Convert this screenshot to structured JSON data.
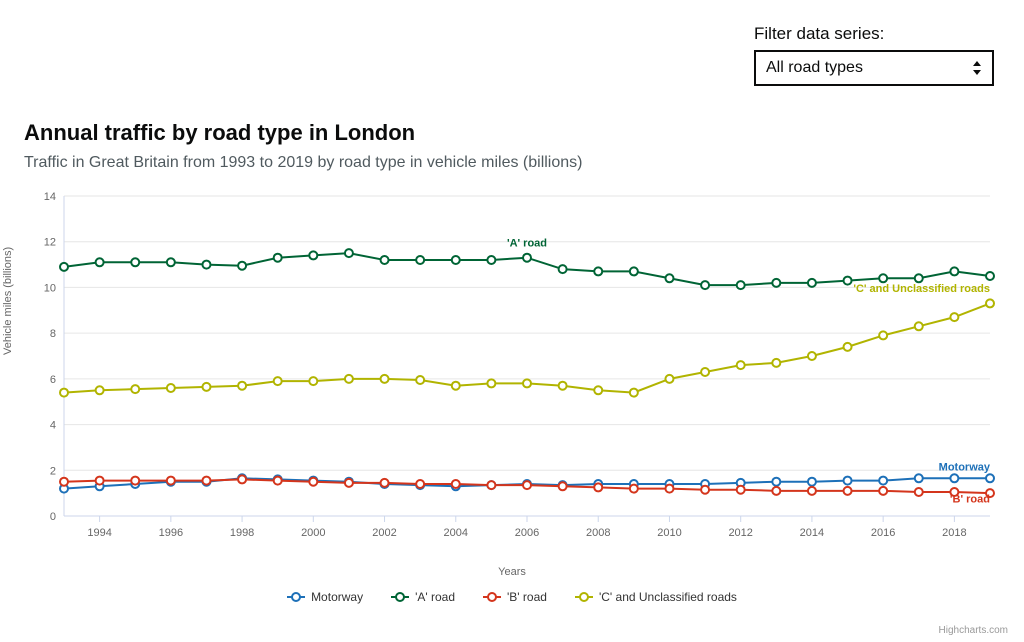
{
  "filter": {
    "label": "Filter data series:",
    "selected": "All road types"
  },
  "chart": {
    "type": "line",
    "title": "Annual traffic by road type in London",
    "subtitle": "Traffic in Great Britain from 1993 to 2019 by road type in vehicle miles (billions)",
    "xlabel": "Years",
    "ylabel": "Vehicle miles (billions)",
    "xlim": [
      1993,
      2019
    ],
    "ylim": [
      0,
      14
    ],
    "ytick_step": 2,
    "xticks": [
      1994,
      1996,
      1998,
      2000,
      2002,
      2004,
      2006,
      2008,
      2010,
      2012,
      2014,
      2016,
      2018
    ],
    "background_color": "#ffffff",
    "grid_color": "#e6e6e6",
    "axis_line_color": "#ccd6eb",
    "tick_label_color": "#666666",
    "tick_fontsize": 11,
    "title_fontsize": 22,
    "subtitle_fontsize": 16,
    "line_width": 2,
    "marker_radius": 4,
    "marker_fill": "#ffffff",
    "years": [
      1993,
      1994,
      1995,
      1996,
      1997,
      1998,
      1999,
      2000,
      2001,
      2002,
      2003,
      2004,
      2005,
      2006,
      2007,
      2008,
      2009,
      2010,
      2011,
      2012,
      2013,
      2014,
      2015,
      2016,
      2017,
      2018,
      2019
    ],
    "series": [
      {
        "name": "Motorway",
        "color": "#1d70b8",
        "label_xy": [
          2019,
          2.0
        ],
        "values": [
          1.2,
          1.3,
          1.4,
          1.5,
          1.5,
          1.65,
          1.6,
          1.55,
          1.5,
          1.4,
          1.35,
          1.3,
          1.35,
          1.4,
          1.35,
          1.4,
          1.4,
          1.4,
          1.4,
          1.45,
          1.5,
          1.5,
          1.55,
          1.55,
          1.65,
          1.65,
          1.65
        ]
      },
      {
        "name": "'A' road",
        "color": "#006435",
        "label_xy": [
          2006,
          11.8
        ],
        "values": [
          10.9,
          11.1,
          11.1,
          11.1,
          11.0,
          10.95,
          11.3,
          11.4,
          11.5,
          11.2,
          11.2,
          11.2,
          11.2,
          11.3,
          10.8,
          10.7,
          10.7,
          10.4,
          10.1,
          10.1,
          10.2,
          10.2,
          10.3,
          10.4,
          10.4,
          10.7,
          10.5
        ]
      },
      {
        "name": "'B' road",
        "color": "#d4351c",
        "label_xy": [
          2019,
          0.6
        ],
        "values": [
          1.5,
          1.55,
          1.55,
          1.55,
          1.55,
          1.6,
          1.55,
          1.5,
          1.45,
          1.45,
          1.4,
          1.4,
          1.35,
          1.35,
          1.3,
          1.25,
          1.2,
          1.2,
          1.15,
          1.15,
          1.1,
          1.1,
          1.1,
          1.1,
          1.05,
          1.05,
          1.0
        ]
      },
      {
        "name": "'C' and Unclassified roads",
        "color": "#b1b400",
        "label_xy": [
          2019,
          9.8
        ],
        "values": [
          5.4,
          5.5,
          5.55,
          5.6,
          5.65,
          5.7,
          5.9,
          5.9,
          6.0,
          6.0,
          5.95,
          5.7,
          5.8,
          5.8,
          5.7,
          5.5,
          5.4,
          6.0,
          6.3,
          6.6,
          6.7,
          7.0,
          7.4,
          7.9,
          8.3,
          8.7,
          9.3
        ]
      }
    ]
  },
  "legend": {
    "items": [
      "Motorway",
      "'A' road",
      "'B' road",
      "'C' and Unclassified roads"
    ]
  },
  "credit": "Highcharts.com"
}
